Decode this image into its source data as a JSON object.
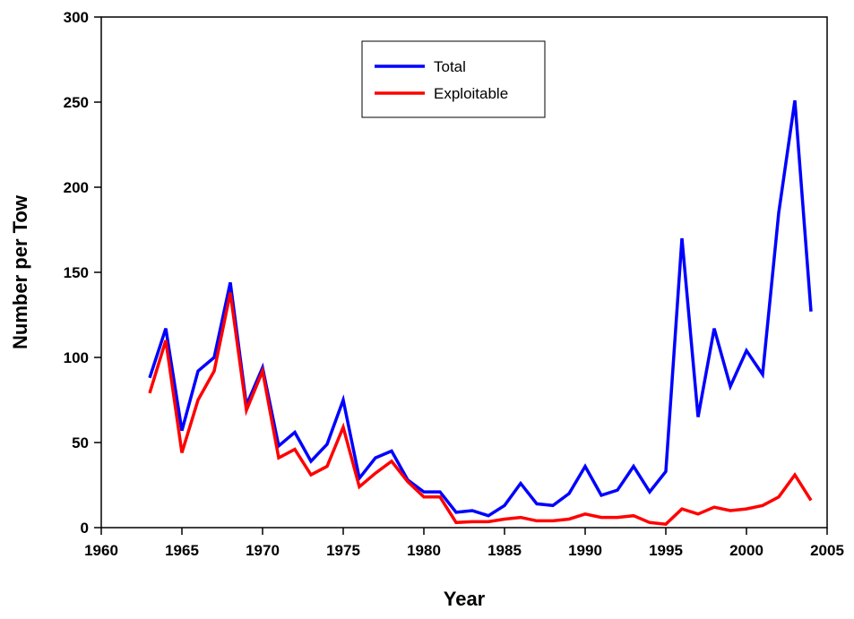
{
  "chart_data": {
    "type": "line",
    "x_label": "Year",
    "y_label": "Number per Tow",
    "x": [
      1963,
      1964,
      1965,
      1966,
      1967,
      1968,
      1969,
      1970,
      1971,
      1972,
      1973,
      1974,
      1975,
      1976,
      1977,
      1978,
      1979,
      1980,
      1981,
      1982,
      1983,
      1984,
      1985,
      1986,
      1987,
      1988,
      1989,
      1990,
      1991,
      1992,
      1993,
      1994,
      1995,
      1996,
      1997,
      1998,
      1999,
      2000,
      2001,
      2002,
      2003,
      2004
    ],
    "series": [
      {
        "name": "Total",
        "color": "#0000ff",
        "values": [
          88,
          117,
          57,
          92,
          100,
          144,
          72,
          94,
          48,
          56,
          39,
          49,
          75,
          29,
          41,
          45,
          28,
          21,
          21,
          9,
          10,
          7,
          13,
          26,
          14,
          13,
          20,
          36,
          19,
          22,
          36,
          21,
          33,
          170,
          65,
          117,
          83,
          104,
          90,
          185,
          251,
          127
        ]
      },
      {
        "name": "Exploitable",
        "color": "#ff0000",
        "values": [
          79,
          110,
          44,
          75,
          92,
          138,
          69,
          92,
          41,
          46,
          31,
          36,
          59,
          24,
          32,
          39,
          27,
          18,
          18,
          3,
          3.5,
          3.5,
          5,
          6,
          4,
          4,
          5,
          8,
          6,
          6,
          7,
          3,
          2,
          11,
          8,
          12,
          10,
          11,
          13,
          18,
          31,
          16
        ]
      }
    ],
    "xlim": [
      1960,
      2005
    ],
    "xticks": [
      1960,
      1965,
      1970,
      1975,
      1980,
      1985,
      1990,
      1995,
      2000,
      2005
    ],
    "ylim": [
      0,
      300
    ],
    "yticks": [
      0,
      50,
      100,
      150,
      200,
      250,
      300
    ],
    "legend": "top-center",
    "grid": false
  }
}
